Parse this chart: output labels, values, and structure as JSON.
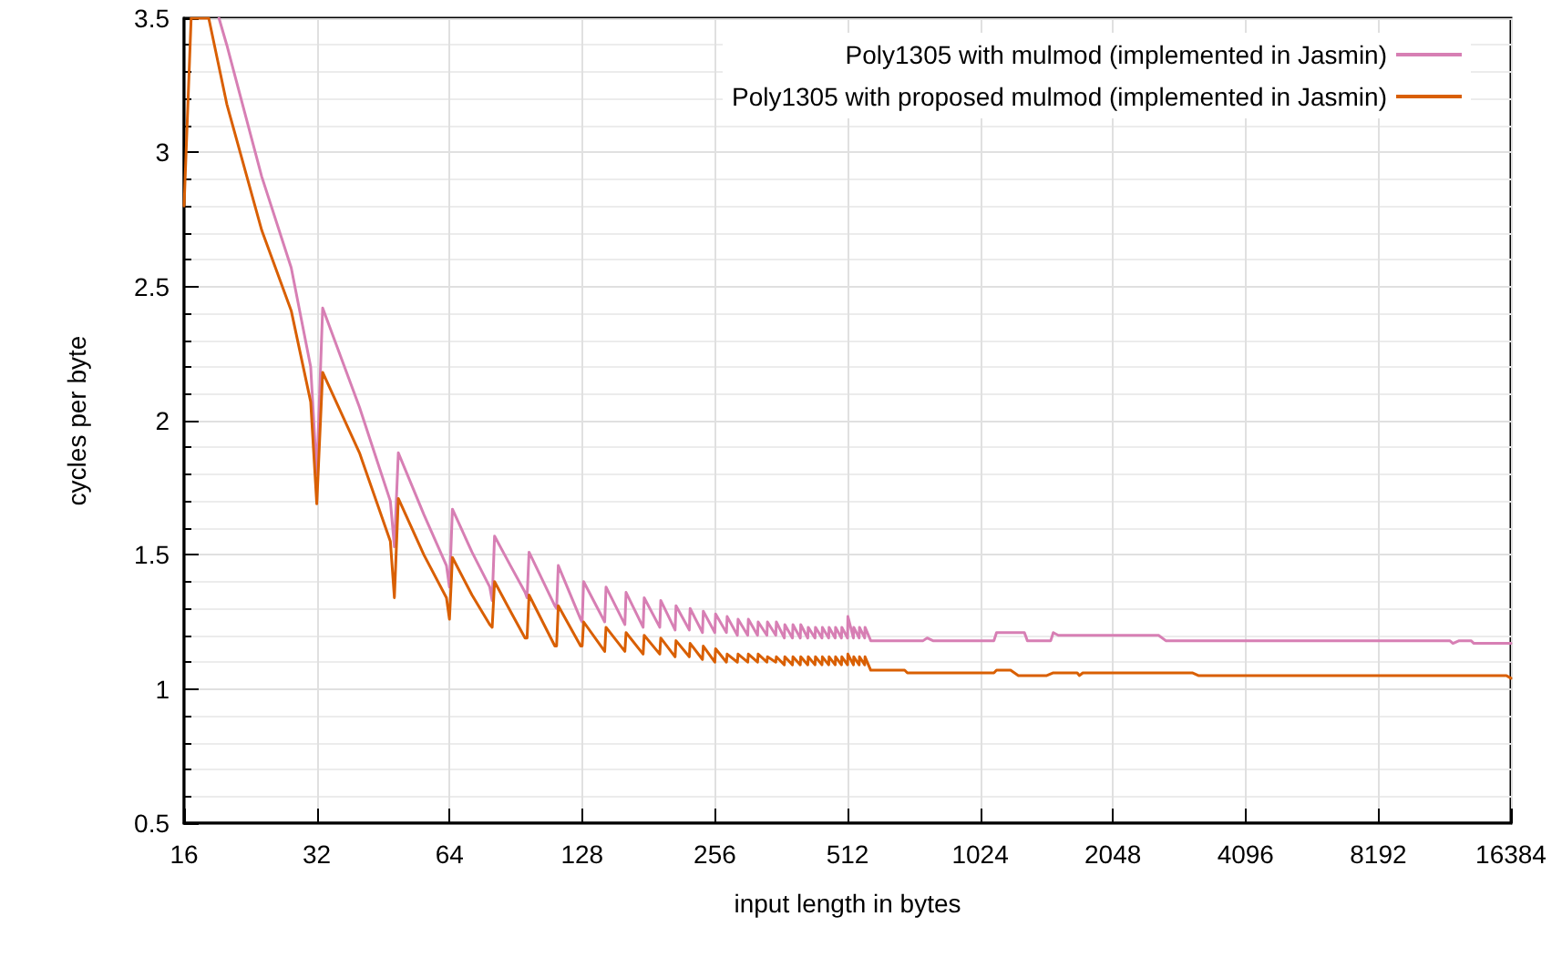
{
  "chart_data": {
    "type": "line",
    "xlabel": "input length in bytes",
    "ylabel": "cycles per byte",
    "log": "x",
    "grid": true,
    "legend": "top right",
    "marker": "none",
    "line_style": "solid",
    "xlim": [
      16,
      16384
    ],
    "xticks": [
      16,
      32,
      64,
      128,
      256,
      512,
      1024,
      2048,
      4096,
      8192,
      16384
    ],
    "ylim": [
      0.5,
      3.5
    ],
    "yticks": [
      0.5,
      1,
      1.5,
      2,
      2.5,
      3,
      3.5
    ],
    "series": [
      {
        "name": "Poly1305 with mulmod (implemented in Jasmin)",
        "color": "#d77fb4",
        "x": [
          19.2,
          20,
          24,
          28,
          31,
          32,
          33,
          40,
          47,
          48,
          49,
          56,
          63,
          64,
          65,
          72,
          79,
          80,
          81,
          88,
          95,
          96,
          97,
          111,
          112,
          113,
          127,
          128,
          129,
          144,
          145,
          160,
          161,
          176,
          177,
          192,
          193,
          208,
          209,
          224,
          225,
          240,
          241,
          256,
          257,
          272,
          273,
          288,
          289,
          304,
          305,
          320,
          321,
          336,
          337,
          352,
          353,
          368,
          369,
          384,
          385,
          400,
          401,
          416,
          417,
          432,
          433,
          448,
          449,
          464,
          465,
          480,
          481,
          496,
          497,
          512,
          513,
          528,
          529,
          544,
          545,
          560,
          561,
          578,
          760,
          776,
          800,
          1100,
          1115,
          1290,
          1310,
          1480,
          1500,
          1540,
          2600,
          2700,
          11900,
          12100,
          12500,
          13300,
          13500,
          16384
        ],
        "values": [
          3.5,
          3.4,
          2.91,
          2.57,
          2.2,
          1.8,
          2.42,
          2.05,
          1.7,
          1.53,
          1.88,
          1.65,
          1.46,
          1.38,
          1.67,
          1.51,
          1.38,
          1.33,
          1.57,
          1.46,
          1.36,
          1.34,
          1.51,
          1.31,
          1.3,
          1.46,
          1.26,
          1.25,
          1.4,
          1.25,
          1.38,
          1.24,
          1.36,
          1.23,
          1.34,
          1.23,
          1.33,
          1.22,
          1.31,
          1.22,
          1.3,
          1.21,
          1.29,
          1.21,
          1.28,
          1.21,
          1.27,
          1.2,
          1.26,
          1.2,
          1.26,
          1.2,
          1.25,
          1.2,
          1.25,
          1.2,
          1.25,
          1.19,
          1.24,
          1.19,
          1.24,
          1.19,
          1.24,
          1.19,
          1.23,
          1.19,
          1.23,
          1.19,
          1.23,
          1.19,
          1.23,
          1.19,
          1.23,
          1.19,
          1.23,
          1.19,
          1.27,
          1.19,
          1.23,
          1.19,
          1.23,
          1.19,
          1.23,
          1.18,
          1.18,
          1.19,
          1.18,
          1.18,
          1.21,
          1.21,
          1.18,
          1.18,
          1.21,
          1.2,
          1.2,
          1.18,
          1.18,
          1.17,
          1.18,
          1.18,
          1.17,
          1.17
        ]
      },
      {
        "name": "Poly1305 with proposed mulmod (implemented in Jasmin)",
        "color": "#d95f02",
        "x": [
          16,
          16.6,
          18.2,
          20,
          24,
          28,
          31,
          32,
          33,
          40,
          47,
          48,
          49,
          56,
          63,
          64,
          65,
          72,
          79,
          80,
          81,
          88,
          95,
          96,
          97,
          111,
          112,
          113,
          127,
          128,
          129,
          144,
          145,
          160,
          161,
          176,
          177,
          192,
          193,
          208,
          209,
          224,
          225,
          240,
          241,
          256,
          257,
          272,
          273,
          288,
          289,
          304,
          305,
          320,
          321,
          336,
          337,
          352,
          353,
          368,
          369,
          384,
          385,
          400,
          401,
          416,
          417,
          432,
          433,
          448,
          449,
          464,
          465,
          480,
          481,
          496,
          497,
          512,
          513,
          528,
          529,
          544,
          545,
          560,
          561,
          578,
          690,
          700,
          1100,
          1115,
          1200,
          1250,
          1450,
          1500,
          1700,
          1720,
          1750,
          1800,
          3100,
          3200,
          16000,
          16384
        ],
        "values": [
          2.8,
          3.5,
          3.5,
          3.18,
          2.71,
          2.41,
          2.07,
          1.69,
          2.18,
          1.88,
          1.55,
          1.34,
          1.71,
          1.5,
          1.34,
          1.26,
          1.49,
          1.35,
          1.24,
          1.23,
          1.4,
          1.29,
          1.19,
          1.19,
          1.35,
          1.16,
          1.16,
          1.31,
          1.16,
          1.16,
          1.25,
          1.14,
          1.23,
          1.14,
          1.21,
          1.13,
          1.2,
          1.13,
          1.19,
          1.12,
          1.18,
          1.12,
          1.17,
          1.11,
          1.16,
          1.1,
          1.15,
          1.1,
          1.13,
          1.1,
          1.13,
          1.1,
          1.13,
          1.1,
          1.13,
          1.1,
          1.12,
          1.1,
          1.12,
          1.09,
          1.12,
          1.09,
          1.12,
          1.09,
          1.12,
          1.09,
          1.12,
          1.09,
          1.12,
          1.09,
          1.12,
          1.09,
          1.12,
          1.09,
          1.12,
          1.09,
          1.12,
          1.09,
          1.13,
          1.09,
          1.12,
          1.09,
          1.12,
          1.09,
          1.12,
          1.07,
          1.07,
          1.06,
          1.06,
          1.07,
          1.07,
          1.05,
          1.05,
          1.06,
          1.06,
          1.05,
          1.06,
          1.06,
          1.06,
          1.05,
          1.05,
          1.04
        ]
      }
    ]
  }
}
